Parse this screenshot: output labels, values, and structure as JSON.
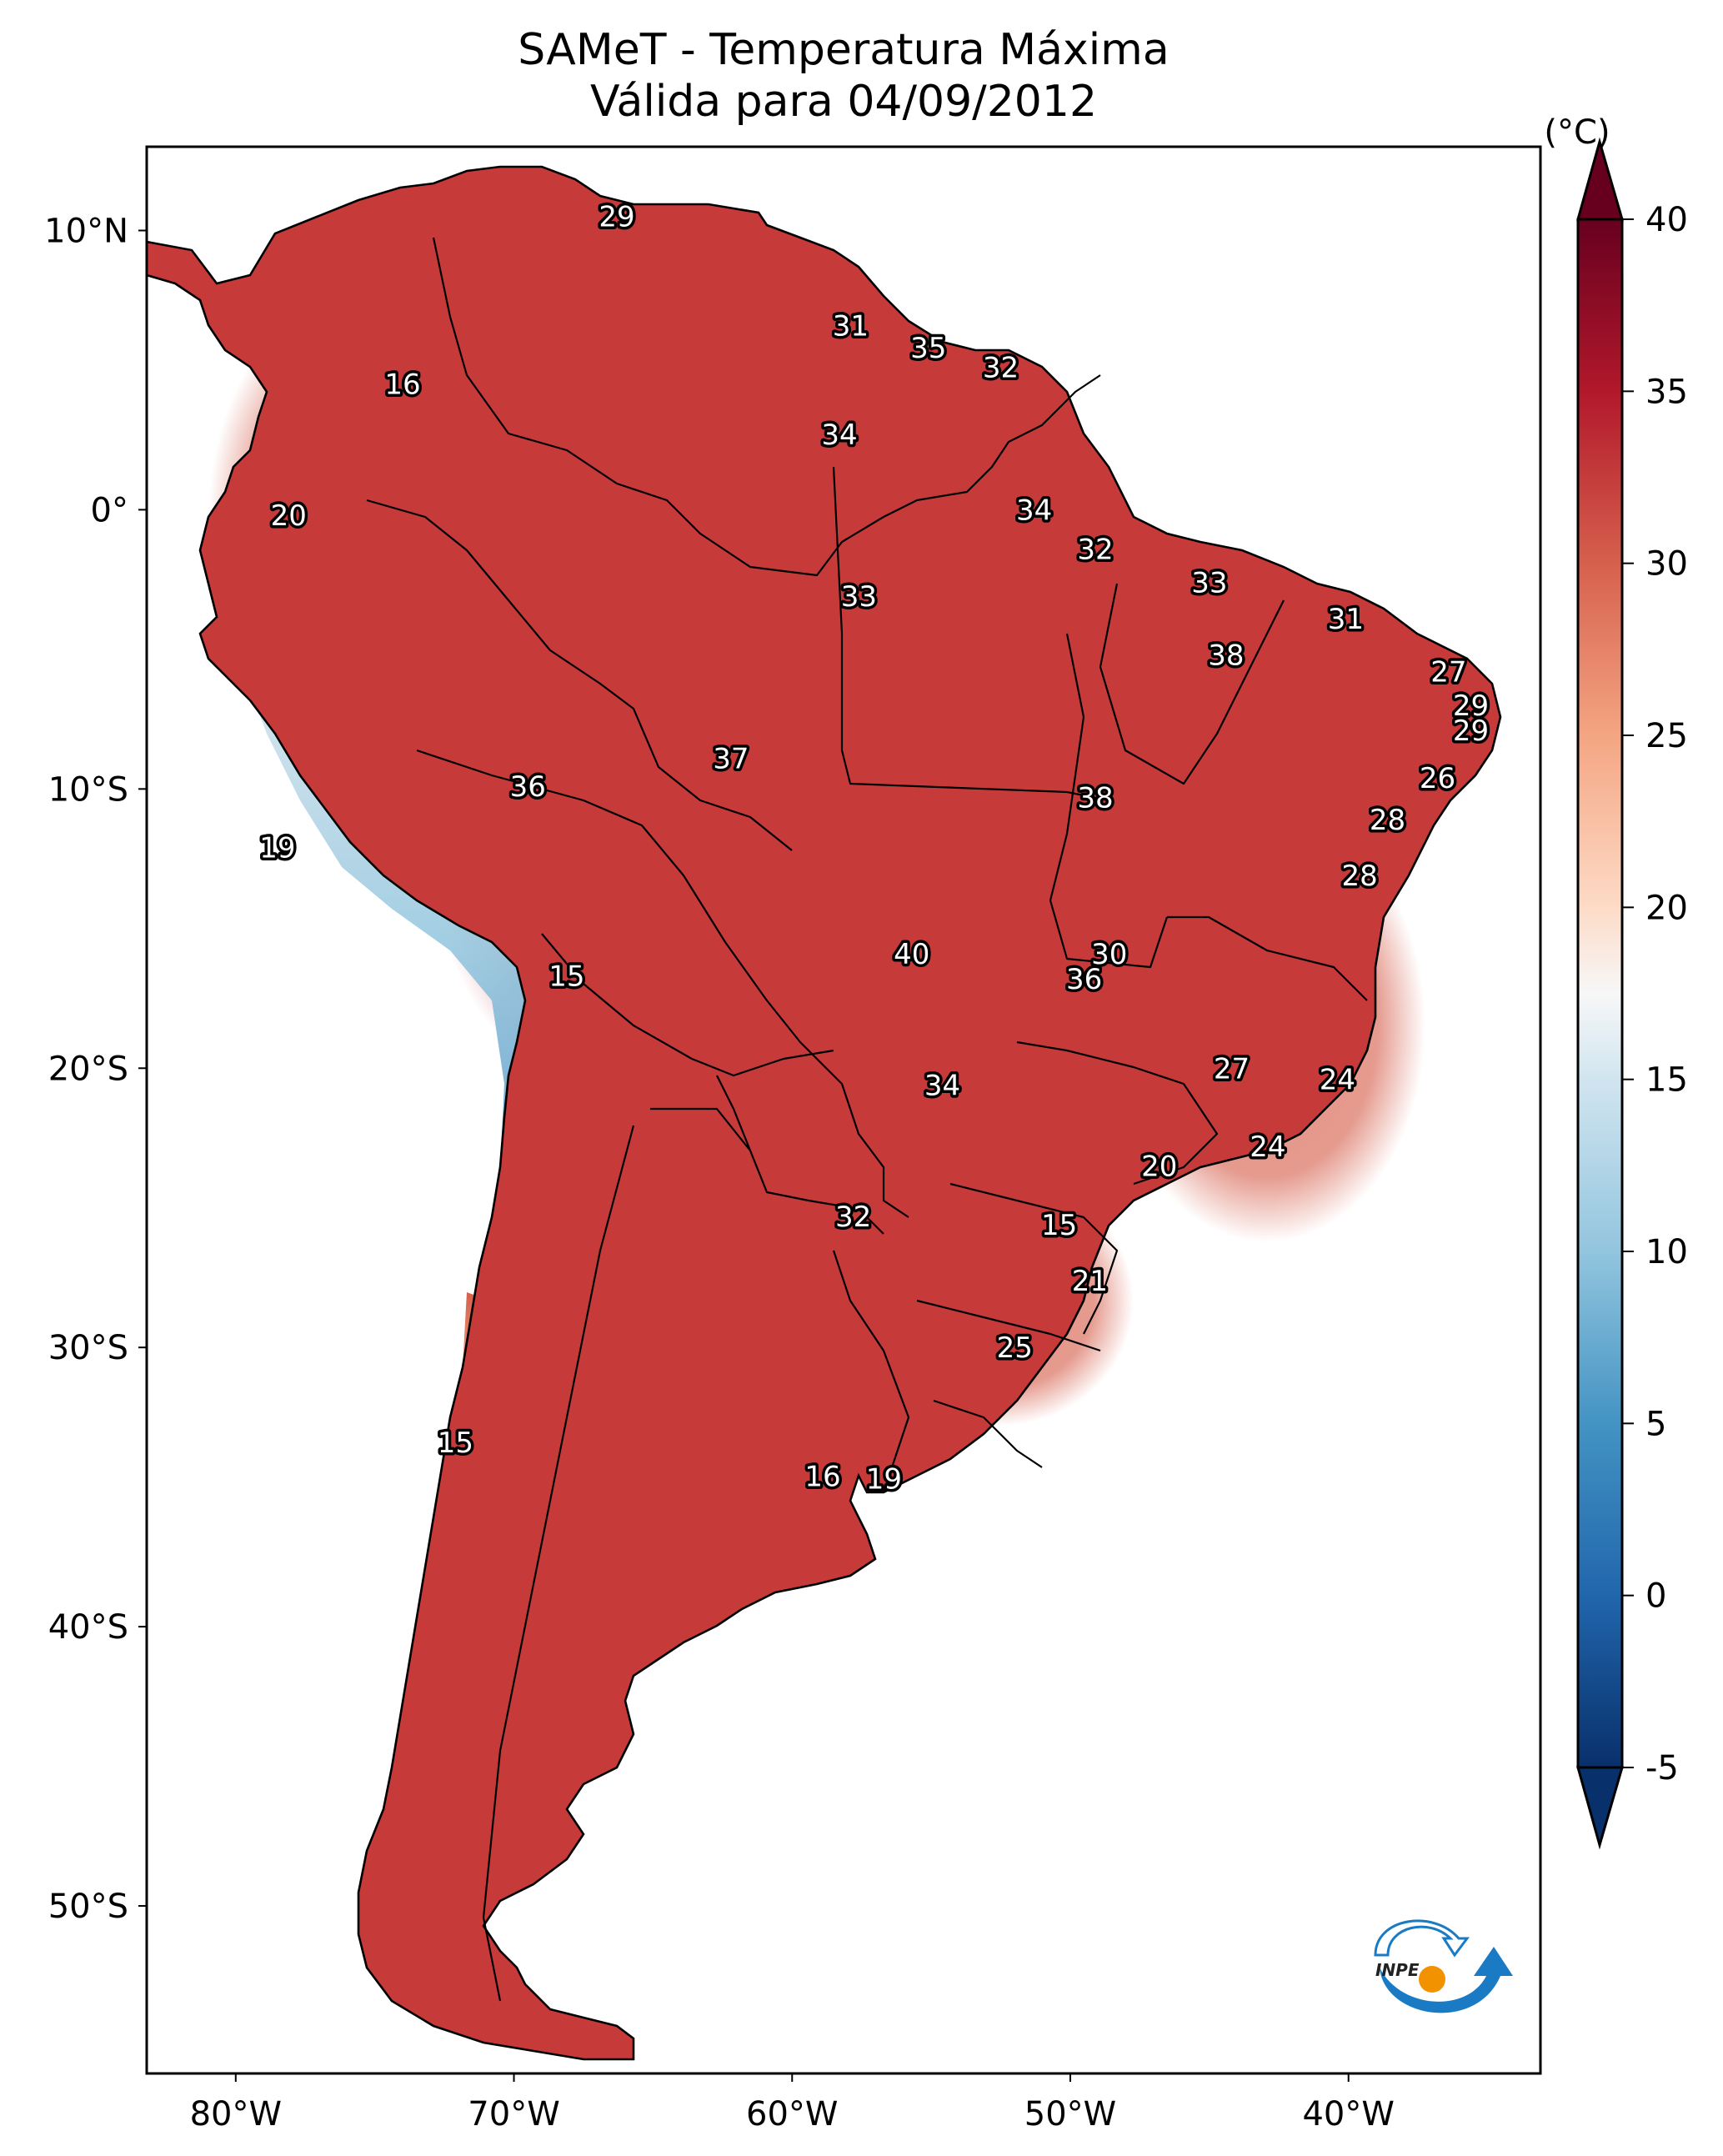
{
  "title": {
    "line1": "SAMeT - Temperatura Máxima",
    "line2": "Válida para 04/09/2012"
  },
  "chart_data": {
    "type": "heatmap",
    "title": "SAMeT - Temperatura Máxima",
    "subtitle": "Válida para 04/09/2012",
    "projection": "PlateCarree",
    "extent": {
      "lon": [
        -83.2,
        -33.1
      ],
      "lat": [
        -56.0,
        13.0
      ]
    },
    "x_ticks": [
      {
        "value": -80,
        "label": "80°W"
      },
      {
        "value": -70,
        "label": "70°W"
      },
      {
        "value": -60,
        "label": "60°W"
      },
      {
        "value": -50,
        "label": "50°W"
      },
      {
        "value": -40,
        "label": "40°W"
      }
    ],
    "y_ticks": [
      {
        "value": 10,
        "label": "10°N"
      },
      {
        "value": 0,
        "label": "0°"
      },
      {
        "value": -10,
        "label": "10°S"
      },
      {
        "value": -20,
        "label": "20°S"
      },
      {
        "value": -30,
        "label": "30°S"
      },
      {
        "value": -40,
        "label": "40°S"
      },
      {
        "value": -50,
        "label": "50°S"
      }
    ],
    "colorbar": {
      "label": "(°C)",
      "cmap": "RdBu_r",
      "vmin": -5,
      "vmax": 40,
      "extend": "both",
      "ticks": [
        40,
        35,
        30,
        25,
        20,
        15,
        10,
        5,
        0,
        -5
      ],
      "stops": [
        {
          "value": -5,
          "color": "#08306b"
        },
        {
          "value": 0,
          "color": "#2166ac"
        },
        {
          "value": 5,
          "color": "#4393c3"
        },
        {
          "value": 10,
          "color": "#92c5de"
        },
        {
          "value": 15,
          "color": "#d1e5f0"
        },
        {
          "value": 17.5,
          "color": "#f7f7f7"
        },
        {
          "value": 20,
          "color": "#fddbc7"
        },
        {
          "value": 25,
          "color": "#f4a582"
        },
        {
          "value": 30,
          "color": "#d6604d"
        },
        {
          "value": 35,
          "color": "#b2182b"
        },
        {
          "value": 40,
          "color": "#67001f"
        }
      ]
    },
    "station_labels": [
      {
        "value": "29",
        "lon": -66.3,
        "lat": 10.5
      },
      {
        "value": "16",
        "lon": -74.0,
        "lat": 4.5
      },
      {
        "value": "31",
        "lon": -57.9,
        "lat": 6.6
      },
      {
        "value": "35",
        "lon": -55.1,
        "lat": 5.8
      },
      {
        "value": "32",
        "lon": -52.5,
        "lat": 5.1
      },
      {
        "value": "34",
        "lon": -58.3,
        "lat": 2.7
      },
      {
        "value": "20",
        "lon": -78.1,
        "lat": -0.2
      },
      {
        "value": "34",
        "lon": -51.3,
        "lat": 0.0
      },
      {
        "value": "32",
        "lon": -49.1,
        "lat": -1.4
      },
      {
        "value": "33",
        "lon": -45.0,
        "lat": -2.6
      },
      {
        "value": "33",
        "lon": -57.6,
        "lat": -3.1
      },
      {
        "value": "31",
        "lon": -40.1,
        "lat": -3.9
      },
      {
        "value": "38",
        "lon": -44.4,
        "lat": -5.2
      },
      {
        "value": "27",
        "lon": -36.4,
        "lat": -5.8
      },
      {
        "value": "29",
        "lon": -35.6,
        "lat": -7.0
      },
      {
        "value": "29",
        "lon": -35.6,
        "lat": -7.9
      },
      {
        "value": "37",
        "lon": -62.2,
        "lat": -8.9
      },
      {
        "value": "36",
        "lon": -69.5,
        "lat": -9.9
      },
      {
        "value": "26",
        "lon": -36.8,
        "lat": -9.6
      },
      {
        "value": "38",
        "lon": -49.1,
        "lat": -10.3
      },
      {
        "value": "28",
        "lon": -38.6,
        "lat": -11.1
      },
      {
        "value": "19",
        "lon": -78.5,
        "lat": -12.1
      },
      {
        "value": "28",
        "lon": -39.6,
        "lat": -13.1
      },
      {
        "value": "30",
        "lon": -48.6,
        "lat": -15.9
      },
      {
        "value": "40",
        "lon": -55.7,
        "lat": -15.9
      },
      {
        "value": "36",
        "lon": -49.5,
        "lat": -16.8
      },
      {
        "value": "15",
        "lon": -68.1,
        "lat": -16.7
      },
      {
        "value": "27",
        "lon": -44.2,
        "lat": -20.0
      },
      {
        "value": "24",
        "lon": -40.4,
        "lat": -20.4
      },
      {
        "value": "34",
        "lon": -54.6,
        "lat": -20.6
      },
      {
        "value": "24",
        "lon": -42.9,
        "lat": -22.8
      },
      {
        "value": "20",
        "lon": -46.8,
        "lat": -23.5
      },
      {
        "value": "32",
        "lon": -57.8,
        "lat": -25.3
      },
      {
        "value": "15",
        "lon": -50.4,
        "lat": -25.6
      },
      {
        "value": "21",
        "lon": -49.3,
        "lat": -27.6
      },
      {
        "value": "25",
        "lon": -52.0,
        "lat": -30.0
      },
      {
        "value": "15",
        "lon": -72.1,
        "lat": -33.4
      },
      {
        "value": "16",
        "lon": -58.9,
        "lat": -34.6
      },
      {
        "value": "19",
        "lon": -56.7,
        "lat": -34.7
      }
    ]
  },
  "logo": {
    "text": "INPE",
    "colors": {
      "blue": "#1a7bc4",
      "orange": "#f39200"
    }
  }
}
